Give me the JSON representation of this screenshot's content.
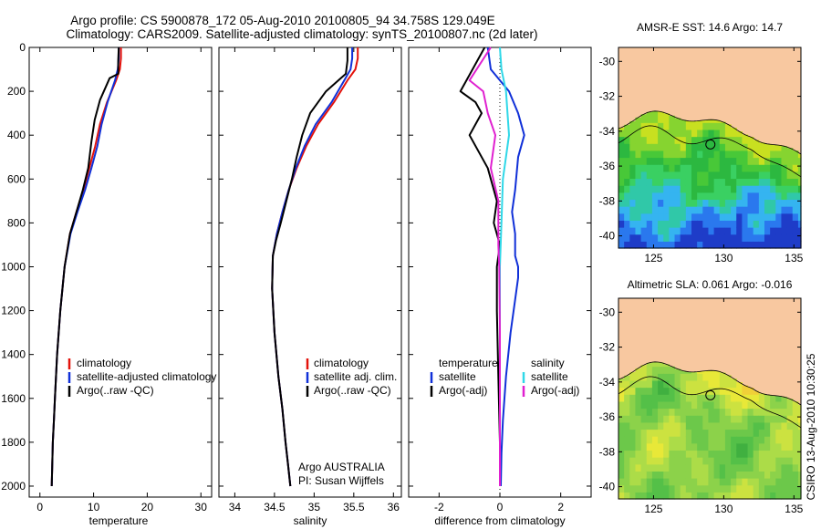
{
  "header": {
    "line1": "Argo profile: CS 5900878_172 05-Aug-2010 20100805_94 34.758S 129.049E",
    "line2": "Climatology: CARS2009. Satellite-adjusted climatology: synTS_20100807.nc (2d later)"
  },
  "footer_credit": "CSIRO 13-Aug-2010 10:30:25",
  "colors": {
    "climatology": "#e3120b",
    "satellite": "#1030d8",
    "argo": "#000000",
    "sat_salinity": "#30d8e8",
    "argo_adj": "#e020d0",
    "land": "#f8c8a0"
  },
  "chart_data": [
    {
      "type": "line",
      "xlabel": "temperature",
      "ylabel": "",
      "xlim": [
        -2,
        32
      ],
      "ylim": [
        2050,
        0
      ],
      "xticks": [
        "0",
        "10",
        "20",
        "30"
      ],
      "yticks": [
        "0",
        "200",
        "400",
        "600",
        "800",
        "1000",
        "1200",
        "1400",
        "1600",
        "1800",
        "2000"
      ],
      "legend": [
        "climatology",
        "satellite-adjusted climatology",
        "Argo(..raw -QC)"
      ],
      "legend_location": "lower-middle",
      "series": [
        {
          "name": "climatology",
          "color": "climatology",
          "x": [
            15.1,
            15.1,
            14.9,
            14.2,
            12.5,
            11.2,
            10.3,
            9.2,
            8.1,
            6.8,
            5.6,
            4.6,
            3.8,
            3.2,
            2.8,
            2.6,
            2.4,
            2.3,
            2.2
          ],
          "y": [
            0,
            50,
            100,
            150,
            250,
            350,
            450,
            550,
            650,
            750,
            850,
            1000,
            1200,
            1400,
            1600,
            1700,
            1800,
            1900,
            2000
          ]
        },
        {
          "name": "satellite-adjusted climatology",
          "color": "satellite",
          "x": [
            14.7,
            14.7,
            14.5,
            14.0,
            12.6,
            11.5,
            10.7,
            9.6,
            8.4,
            7.0,
            5.7,
            4.6,
            3.8,
            3.2,
            2.8,
            2.6,
            2.4,
            2.3,
            2.2
          ],
          "y": [
            0,
            50,
            100,
            150,
            250,
            350,
            450,
            550,
            650,
            750,
            850,
            1000,
            1200,
            1400,
            1600,
            1700,
            1800,
            1900,
            2000
          ]
        },
        {
          "name": "Argo(..raw -QC)",
          "color": "argo",
          "x": [
            14.7,
            14.6,
            14.6,
            13.0,
            11.2,
            10.2,
            9.6,
            9.0,
            8.0,
            6.8,
            5.6,
            4.6,
            3.8,
            3.2,
            2.8,
            2.6,
            2.4,
            2.3,
            2.2
          ],
          "y": [
            0,
            60,
            120,
            140,
            240,
            330,
            430,
            550,
            650,
            750,
            850,
            1000,
            1200,
            1400,
            1600,
            1700,
            1800,
            1900,
            2000
          ]
        }
      ]
    },
    {
      "type": "line",
      "xlabel": "salinity",
      "xlim": [
        33.8,
        36.1
      ],
      "ylim": [
        2050,
        0
      ],
      "xticks": [
        "34",
        "34.5",
        "35",
        "35.5",
        "36"
      ],
      "legend": [
        "climatology",
        "satellite adj. clim.",
        "Argo(..raw -QC)"
      ],
      "annotation": [
        "Argo AUSTRALIA",
        "PI: Susan Wijffels"
      ],
      "series": [
        {
          "name": "climatology",
          "color": "climatology",
          "x": [
            35.55,
            35.55,
            35.52,
            35.42,
            35.25,
            35.05,
            34.9,
            34.78,
            34.68,
            34.6,
            34.53,
            34.48,
            34.47,
            34.5,
            34.55,
            34.6,
            34.64,
            34.67,
            34.7
          ],
          "y": [
            0,
            50,
            100,
            150,
            250,
            350,
            450,
            550,
            650,
            750,
            850,
            950,
            1100,
            1300,
            1500,
            1650,
            1800,
            1900,
            2000
          ]
        },
        {
          "name": "satellite adj. clim.",
          "color": "satellite",
          "x": [
            35.48,
            35.48,
            35.46,
            35.38,
            35.22,
            35.02,
            34.88,
            34.77,
            34.68,
            34.6,
            34.53,
            34.48,
            34.47,
            34.5,
            34.55,
            34.6,
            34.64,
            34.67,
            34.7
          ],
          "y": [
            0,
            50,
            100,
            150,
            250,
            350,
            450,
            550,
            650,
            750,
            850,
            950,
            1100,
            1300,
            1500,
            1650,
            1800,
            1900,
            2000
          ]
        },
        {
          "name": "Argo(..raw -QC)",
          "color": "argo",
          "x": [
            35.42,
            35.42,
            35.4,
            35.15,
            34.95,
            34.85,
            34.78,
            34.72,
            34.65,
            34.58,
            34.52,
            34.48,
            34.47,
            34.5,
            34.55,
            34.6,
            34.64,
            34.67,
            34.7
          ],
          "y": [
            0,
            60,
            120,
            200,
            300,
            400,
            500,
            600,
            700,
            800,
            880,
            950,
            1100,
            1300,
            1500,
            1650,
            1800,
            1900,
            2000
          ]
        }
      ]
    },
    {
      "type": "line",
      "xlabel": "difference from climatology",
      "xlim": [
        -3,
        3
      ],
      "ylim": [
        2050,
        0
      ],
      "xticks": [
        "-2",
        "0",
        "2"
      ],
      "legend_titles": [
        "temperature",
        "salinity"
      ],
      "legend": [
        "satellite",
        "Argo(-adj)",
        "satellite",
        "Argo(-adj)"
      ],
      "series": [
        {
          "name": "satellite",
          "color": "satellite",
          "x": [
            -0.4,
            -0.3,
            0.3,
            0.6,
            0.8,
            0.6,
            0.5,
            0.4,
            0.5,
            0.5,
            0.6,
            0.6,
            0.5,
            0.35,
            0.2,
            0.1,
            0.05,
            0.03
          ],
          "y": [
            0,
            100,
            200,
            300,
            400,
            500,
            650,
            750,
            850,
            950,
            1000,
            1050,
            1150,
            1300,
            1500,
            1700,
            1850,
            2000
          ]
        },
        {
          "name": "Argo(-adj)",
          "color": "argo",
          "x": [
            -0.5,
            -1.3,
            -0.8,
            -0.6,
            -1.0,
            -0.4,
            -0.1,
            -0.2,
            0.0,
            -0.1,
            -0.1,
            -0.05,
            0.0,
            0.0
          ],
          "y": [
            0,
            200,
            250,
            300,
            400,
            550,
            700,
            800,
            900,
            1000,
            1200,
            1500,
            1800,
            2000
          ]
        },
        {
          "name": "satellite",
          "color": "sat_salinity",
          "x": [
            0.0,
            0.05,
            0.2,
            0.3,
            0.1,
            0.05,
            0.0,
            0.0,
            0.0,
            0.0
          ],
          "y": [
            0,
            100,
            200,
            400,
            600,
            800,
            1000,
            1300,
            1600,
            2000
          ]
        },
        {
          "name": "Argo(-adj)",
          "color": "argo_adj",
          "x": [
            -0.3,
            -1.0,
            -0.55,
            -0.4,
            -0.15,
            -0.3,
            -0.05,
            -0.05,
            -0.02,
            0.0,
            0.0
          ],
          "y": [
            0,
            150,
            200,
            300,
            400,
            550,
            700,
            900,
            1000,
            1300,
            2000
          ]
        }
      ]
    },
    {
      "type": "heatmap",
      "title": "AMSR-E SST: 14.6 Argo: 14.7",
      "xlim": [
        122.5,
        135.5
      ],
      "ylim": [
        -40.7,
        -29.2
      ],
      "xticks": [
        "125",
        "130",
        "135"
      ],
      "yticks": [
        "-30",
        "-32",
        "-34",
        "-36",
        "-38",
        "-40"
      ],
      "argo_position": [
        129.049,
        -34.758
      ]
    },
    {
      "type": "heatmap",
      "title": "Altimetric SLA: 0.061 Argo: -0.016",
      "xlim": [
        122.5,
        135.5
      ],
      "ylim": [
        -40.7,
        -29.2
      ],
      "xticks": [
        "125",
        "130",
        "135"
      ],
      "yticks": [
        "-30",
        "-32",
        "-34",
        "-36",
        "-38",
        "-40"
      ],
      "argo_position": [
        129.049,
        -34.758
      ]
    }
  ]
}
